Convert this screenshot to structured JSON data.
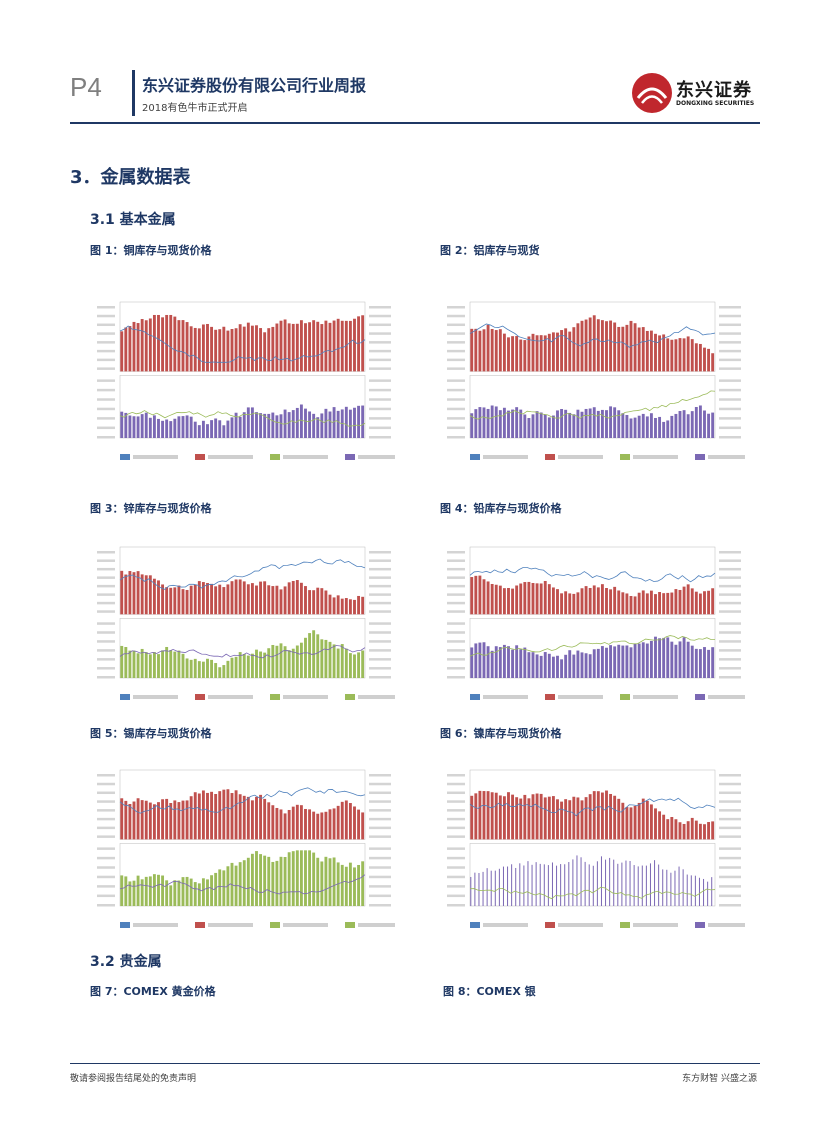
{
  "header": {
    "page": "P4",
    "title": "东兴证券股份有限公司行业周报",
    "subtitle": "2018有色牛市正式开启",
    "logo_cn": "东兴证券",
    "logo_en": "DONGXING SECURITIES"
  },
  "section": {
    "title": "3．金属数据表"
  },
  "subsections": {
    "s31": "3.1  基本金属",
    "s32": "3.2  贵金属"
  },
  "figures": {
    "f1": "图 1：铜库存与现货价格",
    "f2": "图 2：铝库存与现货",
    "f3": "图 3：锌库存与现货价格",
    "f4": "图 4：铅库存与现货价格",
    "f5": "图 5：锡库存与现货价格",
    "f6": "图 6：镍库存与现货价格",
    "f7": "图 7：COMEX 黄金价格",
    "f8": "图 8：COMEX 银"
  },
  "footer": {
    "left": "敬请参阅报告结尾处的免责声明",
    "right": "东方财智 兴盛之源"
  },
  "colors": {
    "red": "#c0504d",
    "purple": "#7b68b4",
    "green": "#9bbb59",
    "blue": "#4f81bd",
    "navy": "#1f3864"
  }
}
